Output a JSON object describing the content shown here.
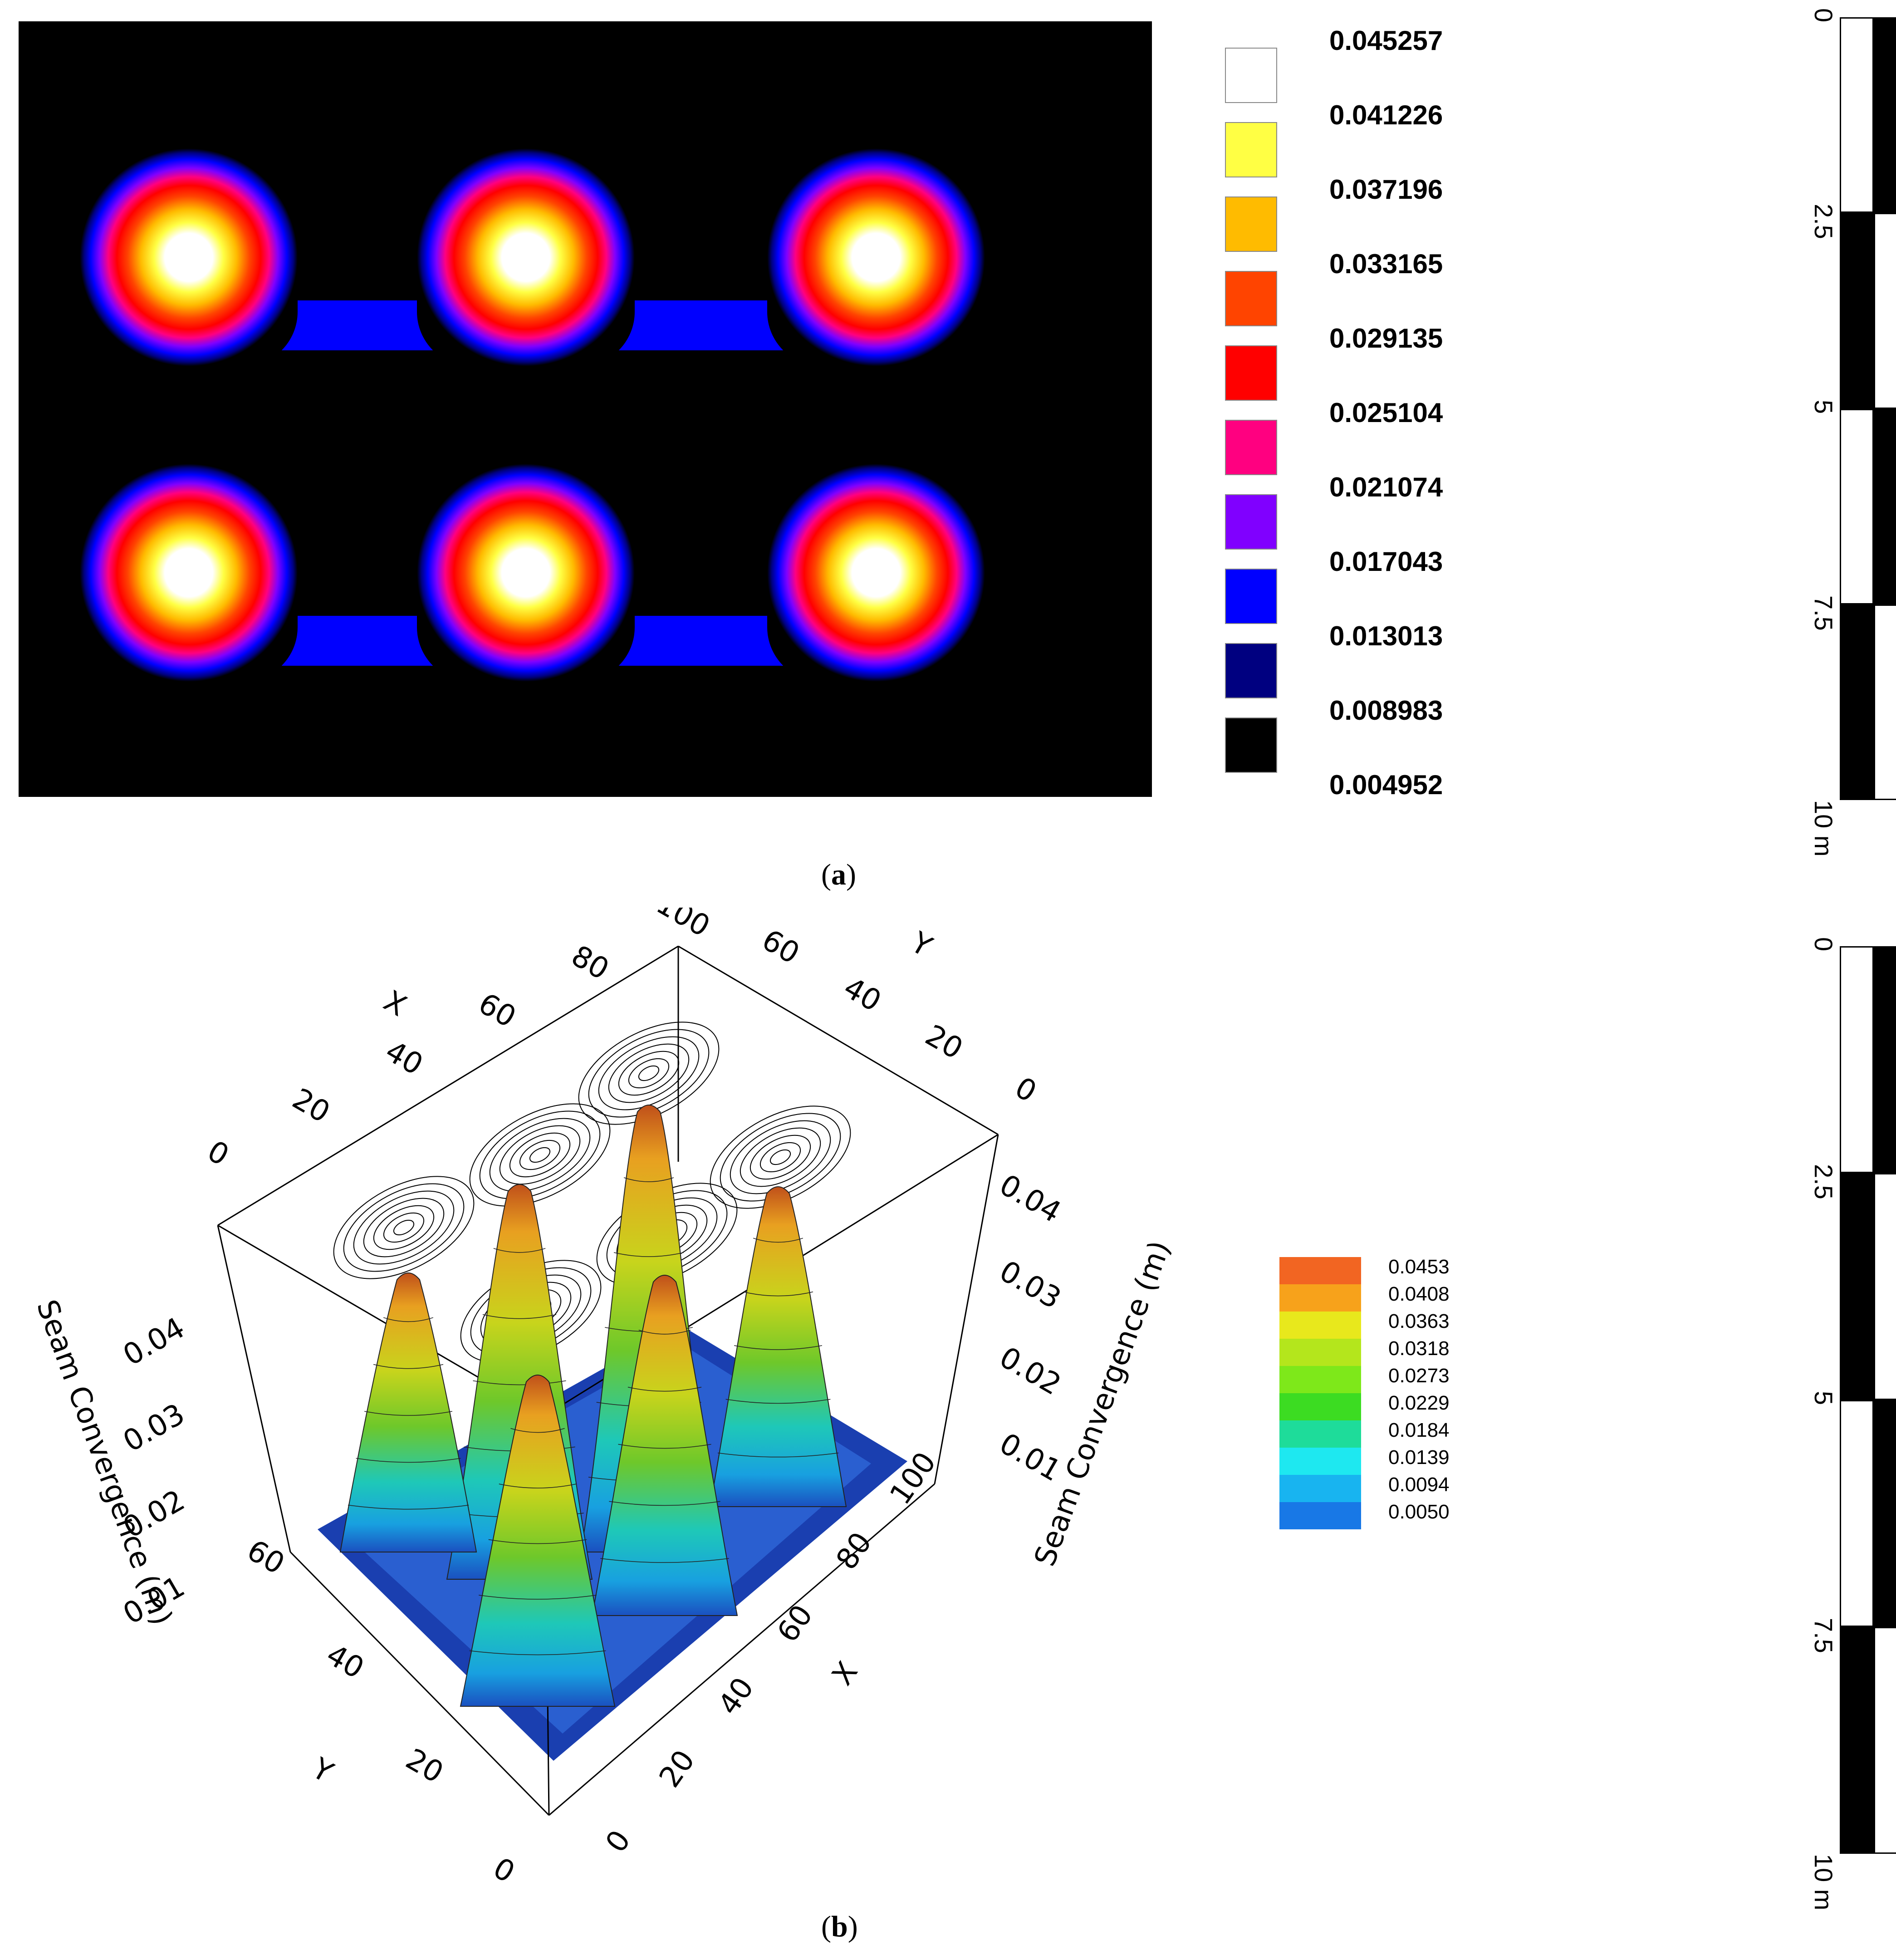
{
  "panel_a": {
    "caption_open": "(",
    "caption_letter": "a",
    "caption_close": ")",
    "legend": [
      {
        "value": "0.045257",
        "color": "#ffffff"
      },
      {
        "value": "0.041226",
        "color": "#ffff44"
      },
      {
        "value": "0.037196",
        "color": "#ffbb00"
      },
      {
        "value": "0.033165",
        "color": "#ff4400"
      },
      {
        "value": "0.029135",
        "color": "#ff0000"
      },
      {
        "value": "0.025104",
        "color": "#ff0080"
      },
      {
        "value": "0.021074",
        "color": "#8000ff"
      },
      {
        "value": "0.017043",
        "color": "#0000ff"
      },
      {
        "value": "0.013013",
        "color": "#000080"
      },
      {
        "value": "0.008983",
        "color": "#000000"
      },
      {
        "value": "0.004952",
        "color": null
      }
    ],
    "scale": {
      "ticks": [
        "0",
        "2.5",
        "5",
        "7.5",
        "10 m"
      ]
    }
  },
  "panel_b": {
    "caption_open": "(",
    "caption_letter": "b",
    "caption_close": ")",
    "axes": {
      "x_label": "X",
      "y_label": "Y",
      "z_label": "Seam Convergence (m)",
      "x_ticks": [
        "0",
        "20",
        "40",
        "60",
        "80",
        "100"
      ],
      "y_ticks": [
        "0",
        "20",
        "40",
        "60"
      ],
      "z_ticks": [
        "0.01",
        "0.02",
        "0.03",
        "0.04"
      ]
    },
    "legend": [
      {
        "value": "0.0453",
        "color": "#f26522"
      },
      {
        "value": "0.0408",
        "color": "#f7a21b"
      },
      {
        "value": "0.0363",
        "color": "#e8e81c"
      },
      {
        "value": "0.0318",
        "color": "#b4e61c"
      },
      {
        "value": "0.0273",
        "color": "#7ee81a"
      },
      {
        "value": "0.0229",
        "color": "#3cdc22"
      },
      {
        "value": "0.0184",
        "color": "#1edc9a"
      },
      {
        "value": "0.0139",
        "color": "#1ee8f0"
      },
      {
        "value": "0.0094",
        "color": "#18b4f0"
      },
      {
        "value": "0.0050",
        "color": "#1878e6"
      }
    ],
    "scale": {
      "ticks": [
        "0",
        "2.5",
        "5",
        "7.5",
        "10 m"
      ]
    }
  },
  "chart_data": {
    "type": "heatmap",
    "colorbar_values": [
      0.045257,
      0.041226,
      0.037196,
      0.033165,
      0.029135,
      0.025104,
      0.021074,
      0.017043,
      0.013013,
      0.008983,
      0.004952
    ],
    "peaks": [
      {
        "row": 1,
        "col": 1
      },
      {
        "row": 1,
        "col": 2
      },
      {
        "row": 1,
        "col": 3
      },
      {
        "row": 2,
        "col": 1
      },
      {
        "row": 2,
        "col": 2
      },
      {
        "row": 2,
        "col": 3
      }
    ],
    "peak_max": 0.0453,
    "background": 0.005
  }
}
